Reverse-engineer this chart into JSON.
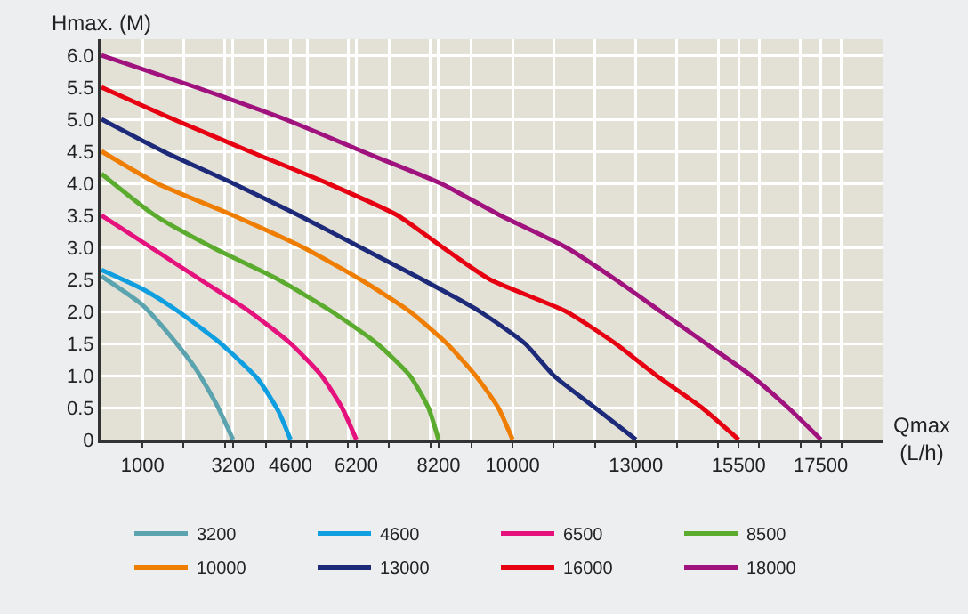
{
  "chart_data": {
    "type": "line",
    "xlabel": "Qmax\n(L/h)",
    "ylabel": "Hmax. (M)",
    "xlim": [
      0,
      19000
    ],
    "ylim": [
      0,
      6.25
    ],
    "xticks": [
      1000,
      {
        "value": 2000,
        "label": null
      },
      {
        "value": 3000,
        "label": null
      },
      3200,
      {
        "value": 4000,
        "label": null
      },
      4600,
      {
        "value": 5000,
        "label": null
      },
      {
        "value": 6000,
        "label": null
      },
      6200,
      {
        "value": 7000,
        "label": null
      },
      {
        "value": 8000,
        "label": null
      },
      8200,
      {
        "value": 9000,
        "label": null
      },
      10000,
      {
        "value": 11000,
        "label": null
      },
      {
        "value": 12000,
        "label": null
      },
      13000,
      {
        "value": 14000,
        "label": null
      },
      {
        "value": 15000,
        "label": null
      },
      15500,
      {
        "value": 16000,
        "label": null
      },
      {
        "value": 17000,
        "label": null
      },
      17500,
      {
        "value": 18000,
        "label": null
      }
    ],
    "yticks": [
      0,
      {
        "value": 0.5,
        "label": "0.5"
      },
      {
        "value": 1,
        "label": "1.0"
      },
      {
        "value": 1.5,
        "label": "1.5"
      },
      {
        "value": 2,
        "label": "2.0"
      },
      {
        "value": 2.5,
        "label": "2.5"
      },
      {
        "value": 3,
        "label": "3.0"
      },
      {
        "value": 3.5,
        "label": "3.5"
      },
      {
        "value": 4,
        "label": "4.0"
      },
      {
        "value": 4.5,
        "label": "4.5"
      },
      {
        "value": 5,
        "label": "5.0"
      },
      {
        "value": 5.5,
        "label": "5.5"
      },
      {
        "value": 6,
        "label": "6.0"
      }
    ],
    "grid": true,
    "legend": "bottom",
    "marker": "none",
    "line_style": "solid",
    "series": [
      {
        "name": "3200",
        "color": "#5ba3ae",
        "x": [
          0,
          1000,
          1700,
          2300,
          2800,
          3200
        ],
        "values": [
          2.55,
          2.1,
          1.6,
          1.1,
          0.55,
          0
        ]
      },
      {
        "name": "4600",
        "color": "#0f9ee0",
        "x": [
          0,
          1000,
          1870,
          2900,
          3800,
          4300,
          4600
        ],
        "values": [
          2.65,
          2.35,
          2.0,
          1.5,
          0.95,
          0.45,
          0
        ]
      },
      {
        "name": "6500",
        "color": "#e5127d",
        "x": [
          0,
          1200,
          2400,
          3600,
          4600,
          5350,
          5850,
          6200
        ],
        "values": [
          3.5,
          3.0,
          2.5,
          2.0,
          1.5,
          1.0,
          0.5,
          0
        ]
      },
      {
        "name": "8500",
        "color": "#5aab2e",
        "x": [
          0,
          1300,
          2700,
          4300,
          5600,
          6700,
          7500,
          7950,
          8200
        ],
        "values": [
          4.15,
          3.5,
          3.0,
          2.5,
          2.0,
          1.5,
          1.0,
          0.5,
          0
        ]
      },
      {
        "name": "10000",
        "color": "#ef7d00",
        "x": [
          0,
          1350,
          3200,
          4900,
          6300,
          7500,
          8400,
          9100,
          9650,
          10000
        ],
        "values": [
          4.5,
          4.0,
          3.5,
          3.0,
          2.5,
          2.0,
          1.5,
          1.0,
          0.5,
          0
        ]
      },
      {
        "name": "13000",
        "color": "#1d2a7a",
        "x": [
          0,
          1500,
          3200,
          4800,
          6300,
          7800,
          9200,
          10300,
          11000,
          12000,
          13000
        ],
        "values": [
          5.0,
          4.5,
          4.0,
          3.5,
          3.0,
          2.5,
          2.0,
          1.5,
          1.0,
          0.5,
          0
        ]
      },
      {
        "name": "16000",
        "color": "#e60012",
        "x": [
          0,
          1750,
          3600,
          5500,
          7200,
          8300,
          9450,
          11300,
          12500,
          13500,
          14600,
          15500
        ],
        "values": [
          5.5,
          5.0,
          4.5,
          4.0,
          3.5,
          3.0,
          2.5,
          2.0,
          1.5,
          1.0,
          0.5,
          0
        ]
      },
      {
        "name": "18000",
        "color": "#a0127e",
        "x": [
          0,
          2300,
          4470,
          6340,
          8250,
          9700,
          11300,
          12500,
          13600,
          14700,
          15800,
          16700,
          17500
        ],
        "values": [
          6.0,
          5.5,
          5.0,
          4.5,
          4.0,
          3.5,
          3.0,
          2.5,
          2.0,
          1.5,
          1.0,
          0.5,
          0
        ]
      }
    ]
  }
}
